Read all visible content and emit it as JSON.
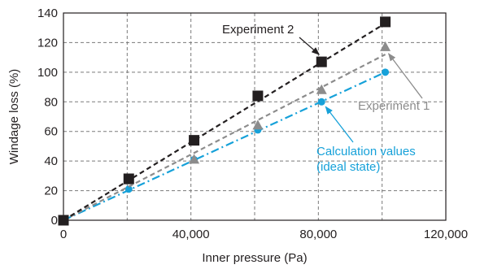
{
  "chart_data": {
    "type": "line",
    "xlabel": "Inner pressure (Pa)",
    "ylabel": "Windage loss (%)",
    "xlim": [
      0,
      120000
    ],
    "ylim": [
      0,
      140
    ],
    "xticks": [
      0,
      40000,
      80000,
      120000
    ],
    "xtick_labels": [
      "0",
      "40,000",
      "80,000",
      "120,000"
    ],
    "yticks": [
      0,
      20,
      40,
      60,
      80,
      100,
      120,
      140
    ],
    "ytick_labels": [
      "0",
      "20",
      "40",
      "60",
      "80",
      "100",
      "120",
      "140"
    ],
    "grid": true,
    "series": [
      {
        "name": "Experiment 2",
        "color": "#231f20",
        "marker": "square",
        "line_style": "dashed",
        "x": [
          0,
          20500,
          41000,
          61000,
          81000,
          101000
        ],
        "y": [
          0,
          28,
          54,
          84,
          107,
          134
        ],
        "fit": [
          [
            0,
            0
          ],
          [
            101000,
            133
          ]
        ]
      },
      {
        "name": "Experiment 1",
        "color": "#8c8c8c",
        "marker": "triangle",
        "line_style": "dashed",
        "x": [
          0,
          20500,
          41000,
          61000,
          81000,
          101000
        ],
        "y": [
          0,
          27,
          41,
          64,
          88,
          117
        ],
        "fit": [
          [
            0,
            0
          ],
          [
            101000,
            112
          ]
        ]
      },
      {
        "name": "Calculation values\n(ideal state)",
        "color": "#16a1d9",
        "marker": "circle",
        "line_style": "dashdot",
        "x": [
          0,
          20500,
          41000,
          61000,
          81000,
          101000
        ],
        "y": [
          0,
          21,
          41,
          61,
          80,
          100
        ],
        "fit": [
          [
            0,
            0
          ],
          [
            101000,
            100
          ]
        ]
      }
    ],
    "annotations": [
      {
        "text": "Experiment 2",
        "color": "#231f20",
        "points_to": [
          81000,
          107
        ]
      },
      {
        "text": "Experiment 1",
        "color": "#8c8c8c",
        "points_to": [
          101000,
          117
        ]
      },
      {
        "text": "Calculation values",
        "text2": "(ideal state)",
        "color": "#16a1d9",
        "points_to": [
          81000,
          80
        ]
      }
    ]
  }
}
